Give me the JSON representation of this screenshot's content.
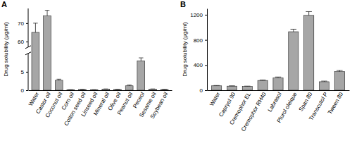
{
  "chart_data": [
    {
      "type": "bar",
      "title": "A",
      "y_label": "Drug solubility (μg/ml)",
      "categories": [
        "Water",
        "Castor oil",
        "Coconut oil",
        "Corn oil",
        "Cotton seed oil",
        "Linseed oil",
        "Mineral oil",
        "Olive oil",
        "Peanut oil",
        "Peceol",
        "Sesame oil",
        "Soybean oil"
      ],
      "values": [
        65,
        74,
        2.7,
        0.1,
        0.2,
        0.1,
        0.3,
        0.2,
        1.2,
        8,
        0.3,
        0.2
      ],
      "errors": [
        5,
        3,
        0.3,
        0.05,
        0.05,
        0.05,
        0.05,
        0.05,
        0.2,
        0.8,
        0.05,
        0.05
      ],
      "color": "#a6a6a6",
      "ylim": [
        0,
        78
      ],
      "y_break": [
        10,
        57
      ],
      "yticks": [
        0,
        5,
        60,
        70
      ]
    },
    {
      "type": "bar",
      "title": "B",
      "y_label": "Drug solubility (μg/ml)",
      "categories": [
        "Water",
        "Capryol 90",
        "Cremophor EL",
        "Cremophor RH40",
        "Labrasol",
        "Plurol oleique",
        "Span 80",
        "Transcutol P",
        "Tween 80"
      ],
      "values": [
        70,
        65,
        60,
        155,
        195,
        930,
        1190,
        135,
        295
      ],
      "errors": [
        5,
        5,
        5,
        8,
        15,
        40,
        60,
        10,
        20
      ],
      "color": "#a6a6a6",
      "ylim": [
        0,
        1300
      ],
      "yticks": [
        0,
        400,
        800,
        1200
      ]
    }
  ]
}
